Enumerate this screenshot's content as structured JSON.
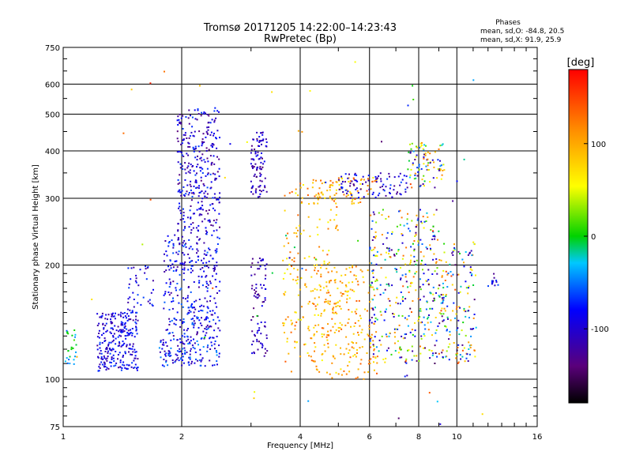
{
  "chart_data": {
    "type": "scatter",
    "title": "Tromsø 20171205 14:22:00–14:23:43",
    "subtitle": "RwPretec (Bp)",
    "xlabel": "Frequency [MHz]",
    "ylabel": "Stationary phase Virtual Height [km]",
    "x_scale": "log",
    "y_scale": "log",
    "xlim": [
      1,
      16
    ],
    "ylim": [
      75,
      750
    ],
    "x_ticks": [
      "1",
      "2",
      "4",
      "6",
      "8",
      "10",
      "16"
    ],
    "x_tick_values": [
      1,
      2,
      4,
      6,
      8,
      10,
      16
    ],
    "y_ticks": [
      "75",
      "100",
      "200",
      "300",
      "400",
      "500",
      "600",
      "750"
    ],
    "y_tick_values": [
      75,
      100,
      200,
      300,
      400,
      500,
      600,
      750
    ],
    "grid": true,
    "colorbar": {
      "label": "[deg]",
      "range": [
        -180,
        180
      ],
      "ticks": [
        "100",
        "0",
        "-100"
      ],
      "tick_values": [
        100,
        0,
        -100
      ]
    },
    "stats": {
      "heading": "Phases",
      "line1": "mean, sd,O:  -84.8,  20.5",
      "line2": "mean, sd,X:   91.9,  25.9"
    },
    "clusters": [
      {
        "f": [
          1.0,
          1.08
        ],
        "h": [
          108,
          135
        ],
        "phase": [
          -60,
          20
        ],
        "n": 25
      },
      {
        "f": [
          1.22,
          1.55
        ],
        "h": [
          105,
          150
        ],
        "phase": [
          -130,
          -60
        ],
        "n": 260
      },
      {
        "f": [
          1.45,
          1.7
        ],
        "h": [
          150,
          200
        ],
        "phase": [
          -130,
          -60
        ],
        "n": 40
      },
      {
        "f": [
          1.75,
          2.5
        ],
        "h": [
          108,
          130
        ],
        "phase": [
          -120,
          -40
        ],
        "n": 140
      },
      {
        "f": [
          1.8,
          2.5
        ],
        "h": [
          130,
          240
        ],
        "phase": [
          -130,
          -50
        ],
        "n": 300
      },
      {
        "f": [
          1.95,
          2.5
        ],
        "h": [
          240,
          520
        ],
        "phase": [
          -140,
          -60
        ],
        "n": 320
      },
      {
        "f": [
          3.0,
          3.3
        ],
        "h": [
          115,
          210
        ],
        "phase": [
          -150,
          -80
        ],
        "n": 80
      },
      {
        "f": [
          3.0,
          3.3
        ],
        "h": [
          300,
          450
        ],
        "phase": [
          -150,
          -80
        ],
        "n": 90
      },
      {
        "f": [
          3.6,
          5.0
        ],
        "h": [
          110,
          330
        ],
        "phase": [
          50,
          140
        ],
        "n": 180
      },
      {
        "f": [
          4.3,
          6.3
        ],
        "h": [
          100,
          200
        ],
        "phase": [
          60,
          140
        ],
        "n": 220
      },
      {
        "f": [
          4.3,
          6.3
        ],
        "h": [
          290,
          340
        ],
        "phase": [
          60,
          140
        ],
        "n": 80
      },
      {
        "f": [
          5.0,
          7.5
        ],
        "h": [
          300,
          350
        ],
        "phase": [
          -140,
          -60
        ],
        "n": 90
      },
      {
        "f": [
          6.0,
          9.0
        ],
        "h": [
          110,
          280
        ],
        "phase": [
          -150,
          140
        ],
        "n": 360
      },
      {
        "f": [
          7.5,
          9.3
        ],
        "h": [
          320,
          420
        ],
        "phase": [
          -150,
          140
        ],
        "n": 90
      },
      {
        "f": [
          9.0,
          11.2
        ],
        "h": [
          110,
          230
        ],
        "phase": [
          -150,
          150
        ],
        "n": 170
      },
      {
        "f": [
          12.0,
          12.8
        ],
        "h": [
          175,
          190
        ],
        "phase": [
          -130,
          -60
        ],
        "n": 12
      },
      {
        "f": [
          1.0,
          12.0
        ],
        "h": [
          76,
          700
        ],
        "phase": [
          -170,
          170
        ],
        "n": 60
      }
    ]
  }
}
